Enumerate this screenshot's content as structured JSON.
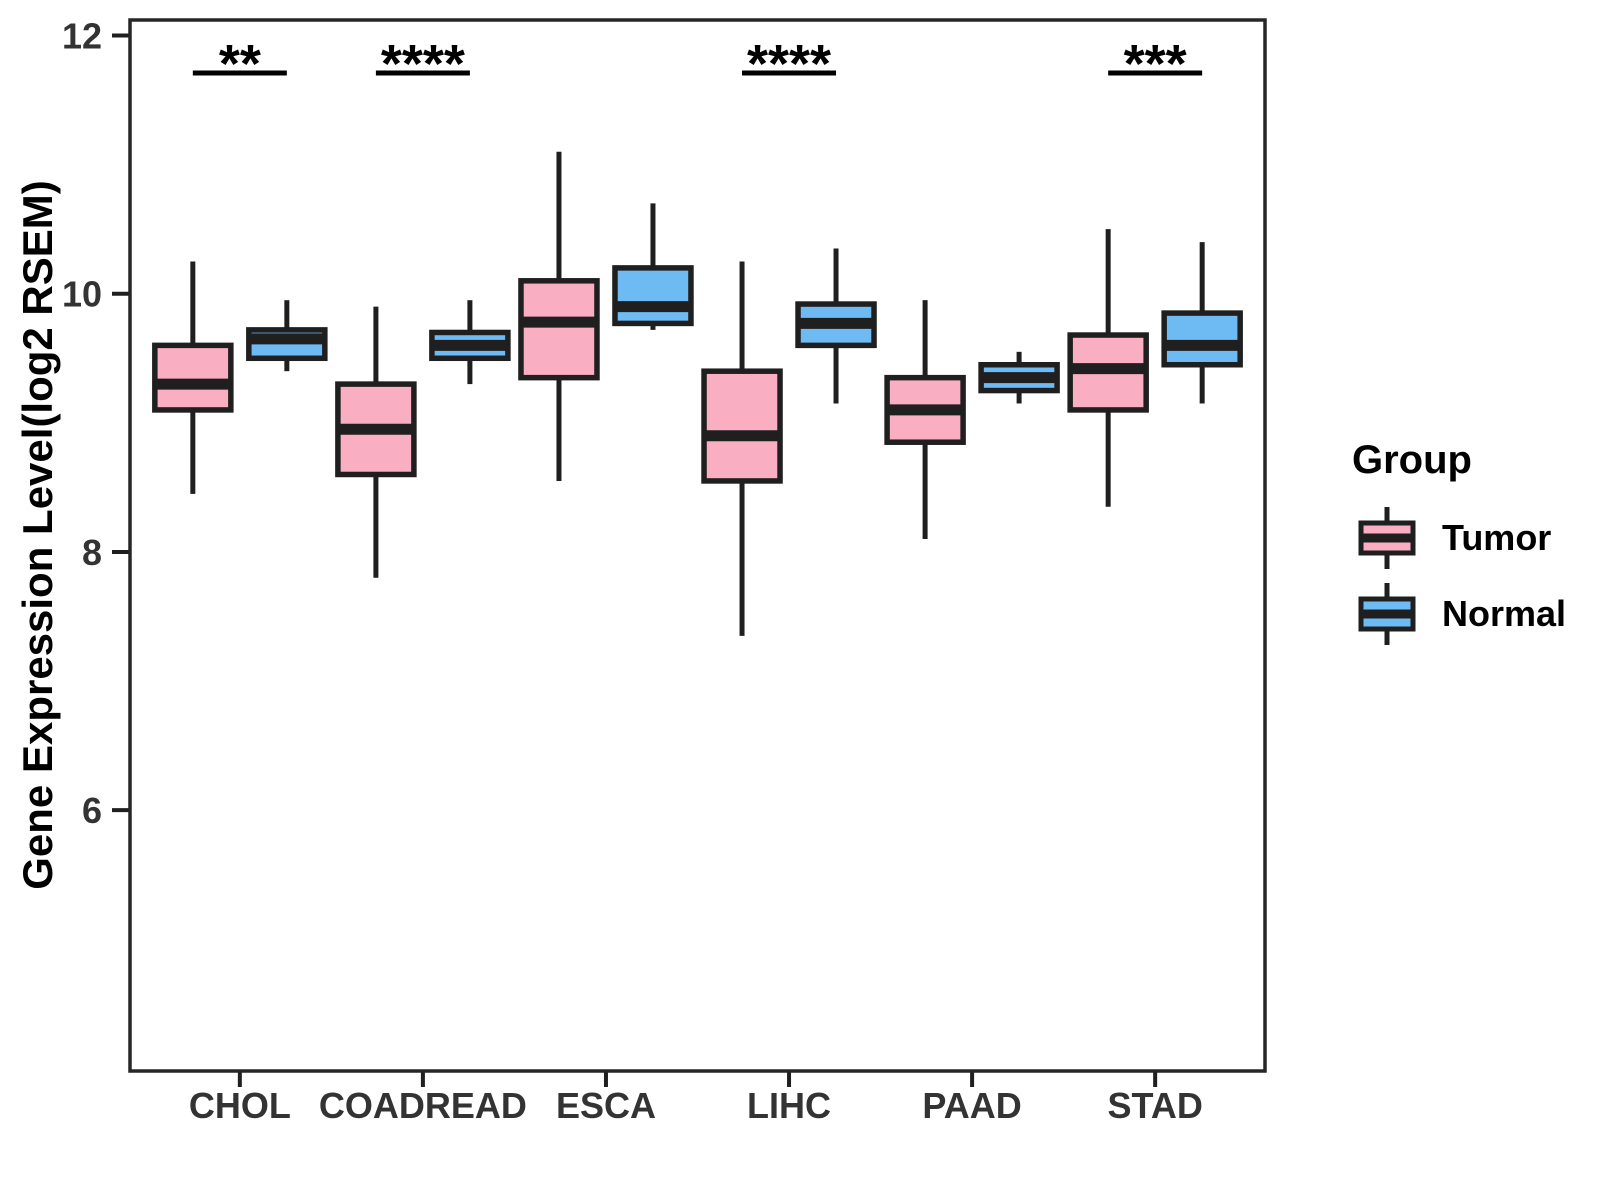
{
  "figure": {
    "background": "#FFFFFF"
  },
  "chart_data": {
    "type": "boxplot",
    "title": "",
    "xlabel": "",
    "ylabel": "Gene Expression Level(log2 RSEM)",
    "categories": [
      "CHOL",
      "COADREAD",
      "ESCA",
      "LIHC",
      "PAAD",
      "STAD"
    ],
    "groups": [
      "Tumor",
      "Normal"
    ],
    "group_colors": {
      "Tumor": "#FAAEC2",
      "Normal": "#6EBBF3"
    },
    "stroke_color": "#1F1F1F",
    "panel_border_color": "#262626",
    "axis_text_color": "#333333",
    "ylim": [
      3.98,
      12.12
    ],
    "yticks": [
      6,
      8,
      10,
      12
    ],
    "grid": false,
    "legend_position": "right",
    "legend": {
      "title": "Group",
      "entries": [
        "Tumor",
        "Normal"
      ]
    },
    "series": [
      {
        "name": "Tumor",
        "boxes": [
          {
            "category": "CHOL",
            "min": 8.45,
            "q1": 9.1,
            "median": 9.3,
            "q3": 9.6,
            "max": 10.25
          },
          {
            "category": "COADREAD",
            "min": 7.8,
            "q1": 8.6,
            "median": 8.95,
            "q3": 9.3,
            "max": 9.9
          },
          {
            "category": "ESCA",
            "min": 8.55,
            "q1": 9.35,
            "median": 9.78,
            "q3": 10.1,
            "max": 11.1
          },
          {
            "category": "LIHC",
            "min": 7.35,
            "q1": 8.55,
            "median": 8.9,
            "q3": 9.4,
            "max": 10.25
          },
          {
            "category": "PAAD",
            "min": 8.1,
            "q1": 8.85,
            "median": 9.1,
            "q3": 9.35,
            "max": 9.95
          },
          {
            "category": "STAD",
            "min": 8.35,
            "q1": 9.1,
            "median": 9.42,
            "q3": 9.68,
            "max": 10.5
          }
        ]
      },
      {
        "name": "Normal",
        "boxes": [
          {
            "category": "CHOL",
            "min": 9.4,
            "q1": 9.5,
            "median": 9.65,
            "q3": 9.72,
            "max": 9.95
          },
          {
            "category": "COADREAD",
            "min": 9.3,
            "q1": 9.5,
            "median": 9.6,
            "q3": 9.7,
            "max": 9.95
          },
          {
            "category": "ESCA",
            "min": 9.72,
            "q1": 9.77,
            "median": 9.9,
            "q3": 10.2,
            "max": 10.7
          },
          {
            "category": "LIHC",
            "min": 9.15,
            "q1": 9.6,
            "median": 9.77,
            "q3": 9.92,
            "max": 10.35
          },
          {
            "category": "PAAD",
            "min": 9.15,
            "q1": 9.25,
            "median": 9.35,
            "q3": 9.45,
            "max": 9.55
          },
          {
            "category": "STAD",
            "min": 9.15,
            "q1": 9.45,
            "median": 9.6,
            "q3": 9.85,
            "max": 10.4
          }
        ]
      }
    ],
    "significance": [
      {
        "category": "CHOL",
        "label": "**"
      },
      {
        "category": "COADREAD",
        "label": "****"
      },
      {
        "category": "LIHC",
        "label": "****"
      },
      {
        "category": "STAD",
        "label": "***"
      }
    ]
  }
}
